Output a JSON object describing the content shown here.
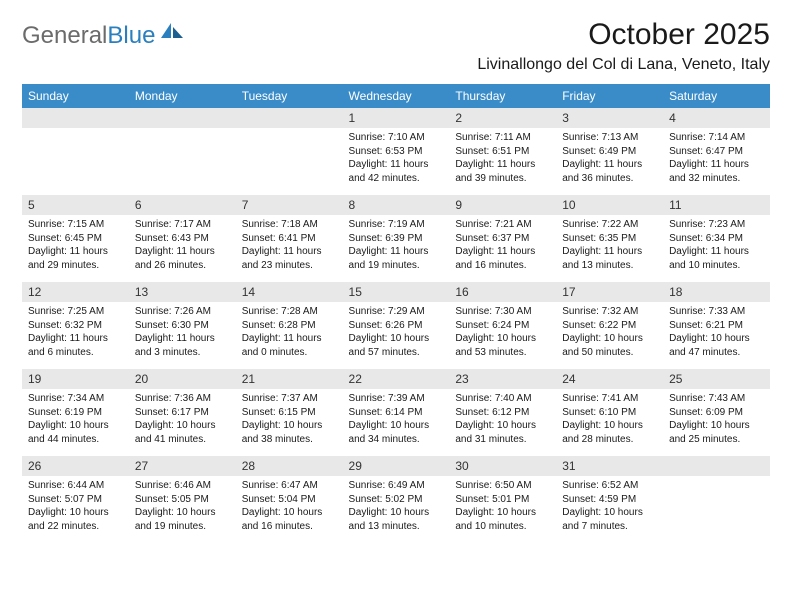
{
  "logo": {
    "text_gray": "General",
    "text_blue": "Blue"
  },
  "title": "October 2025",
  "location": "Livinallongo del Col di Lana, Veneto, Italy",
  "day_headers": [
    "Sunday",
    "Monday",
    "Tuesday",
    "Wednesday",
    "Thursday",
    "Friday",
    "Saturday"
  ],
  "colors": {
    "header_bg": "#3a8cc9",
    "header_fg": "#ffffff",
    "daynum_bg": "#e8e8e8",
    "page_bg": "#ffffff",
    "text": "#1a1a1a",
    "logo_gray": "#6b6b6b",
    "logo_blue": "#2a7fbf"
  },
  "typography": {
    "month_title_fontsize": 30,
    "location_fontsize": 16,
    "day_header_fontsize": 12,
    "daynum_fontsize": 12,
    "cell_body_fontsize": 10
  },
  "layout": {
    "columns": 7,
    "rows": 5,
    "cell_min_height": 62
  },
  "weeks": [
    [
      {
        "day": "",
        "sunrise": "",
        "sunset": "",
        "daylight": ""
      },
      {
        "day": "",
        "sunrise": "",
        "sunset": "",
        "daylight": ""
      },
      {
        "day": "",
        "sunrise": "",
        "sunset": "",
        "daylight": ""
      },
      {
        "day": "1",
        "sunrise": "Sunrise: 7:10 AM",
        "sunset": "Sunset: 6:53 PM",
        "daylight": "Daylight: 11 hours and 42 minutes."
      },
      {
        "day": "2",
        "sunrise": "Sunrise: 7:11 AM",
        "sunset": "Sunset: 6:51 PM",
        "daylight": "Daylight: 11 hours and 39 minutes."
      },
      {
        "day": "3",
        "sunrise": "Sunrise: 7:13 AM",
        "sunset": "Sunset: 6:49 PM",
        "daylight": "Daylight: 11 hours and 36 minutes."
      },
      {
        "day": "4",
        "sunrise": "Sunrise: 7:14 AM",
        "sunset": "Sunset: 6:47 PM",
        "daylight": "Daylight: 11 hours and 32 minutes."
      }
    ],
    [
      {
        "day": "5",
        "sunrise": "Sunrise: 7:15 AM",
        "sunset": "Sunset: 6:45 PM",
        "daylight": "Daylight: 11 hours and 29 minutes."
      },
      {
        "day": "6",
        "sunrise": "Sunrise: 7:17 AM",
        "sunset": "Sunset: 6:43 PM",
        "daylight": "Daylight: 11 hours and 26 minutes."
      },
      {
        "day": "7",
        "sunrise": "Sunrise: 7:18 AM",
        "sunset": "Sunset: 6:41 PM",
        "daylight": "Daylight: 11 hours and 23 minutes."
      },
      {
        "day": "8",
        "sunrise": "Sunrise: 7:19 AM",
        "sunset": "Sunset: 6:39 PM",
        "daylight": "Daylight: 11 hours and 19 minutes."
      },
      {
        "day": "9",
        "sunrise": "Sunrise: 7:21 AM",
        "sunset": "Sunset: 6:37 PM",
        "daylight": "Daylight: 11 hours and 16 minutes."
      },
      {
        "day": "10",
        "sunrise": "Sunrise: 7:22 AM",
        "sunset": "Sunset: 6:35 PM",
        "daylight": "Daylight: 11 hours and 13 minutes."
      },
      {
        "day": "11",
        "sunrise": "Sunrise: 7:23 AM",
        "sunset": "Sunset: 6:34 PM",
        "daylight": "Daylight: 11 hours and 10 minutes."
      }
    ],
    [
      {
        "day": "12",
        "sunrise": "Sunrise: 7:25 AM",
        "sunset": "Sunset: 6:32 PM",
        "daylight": "Daylight: 11 hours and 6 minutes."
      },
      {
        "day": "13",
        "sunrise": "Sunrise: 7:26 AM",
        "sunset": "Sunset: 6:30 PM",
        "daylight": "Daylight: 11 hours and 3 minutes."
      },
      {
        "day": "14",
        "sunrise": "Sunrise: 7:28 AM",
        "sunset": "Sunset: 6:28 PM",
        "daylight": "Daylight: 11 hours and 0 minutes."
      },
      {
        "day": "15",
        "sunrise": "Sunrise: 7:29 AM",
        "sunset": "Sunset: 6:26 PM",
        "daylight": "Daylight: 10 hours and 57 minutes."
      },
      {
        "day": "16",
        "sunrise": "Sunrise: 7:30 AM",
        "sunset": "Sunset: 6:24 PM",
        "daylight": "Daylight: 10 hours and 53 minutes."
      },
      {
        "day": "17",
        "sunrise": "Sunrise: 7:32 AM",
        "sunset": "Sunset: 6:22 PM",
        "daylight": "Daylight: 10 hours and 50 minutes."
      },
      {
        "day": "18",
        "sunrise": "Sunrise: 7:33 AM",
        "sunset": "Sunset: 6:21 PM",
        "daylight": "Daylight: 10 hours and 47 minutes."
      }
    ],
    [
      {
        "day": "19",
        "sunrise": "Sunrise: 7:34 AM",
        "sunset": "Sunset: 6:19 PM",
        "daylight": "Daylight: 10 hours and 44 minutes."
      },
      {
        "day": "20",
        "sunrise": "Sunrise: 7:36 AM",
        "sunset": "Sunset: 6:17 PM",
        "daylight": "Daylight: 10 hours and 41 minutes."
      },
      {
        "day": "21",
        "sunrise": "Sunrise: 7:37 AM",
        "sunset": "Sunset: 6:15 PM",
        "daylight": "Daylight: 10 hours and 38 minutes."
      },
      {
        "day": "22",
        "sunrise": "Sunrise: 7:39 AM",
        "sunset": "Sunset: 6:14 PM",
        "daylight": "Daylight: 10 hours and 34 minutes."
      },
      {
        "day": "23",
        "sunrise": "Sunrise: 7:40 AM",
        "sunset": "Sunset: 6:12 PM",
        "daylight": "Daylight: 10 hours and 31 minutes."
      },
      {
        "day": "24",
        "sunrise": "Sunrise: 7:41 AM",
        "sunset": "Sunset: 6:10 PM",
        "daylight": "Daylight: 10 hours and 28 minutes."
      },
      {
        "day": "25",
        "sunrise": "Sunrise: 7:43 AM",
        "sunset": "Sunset: 6:09 PM",
        "daylight": "Daylight: 10 hours and 25 minutes."
      }
    ],
    [
      {
        "day": "26",
        "sunrise": "Sunrise: 6:44 AM",
        "sunset": "Sunset: 5:07 PM",
        "daylight": "Daylight: 10 hours and 22 minutes."
      },
      {
        "day": "27",
        "sunrise": "Sunrise: 6:46 AM",
        "sunset": "Sunset: 5:05 PM",
        "daylight": "Daylight: 10 hours and 19 minutes."
      },
      {
        "day": "28",
        "sunrise": "Sunrise: 6:47 AM",
        "sunset": "Sunset: 5:04 PM",
        "daylight": "Daylight: 10 hours and 16 minutes."
      },
      {
        "day": "29",
        "sunrise": "Sunrise: 6:49 AM",
        "sunset": "Sunset: 5:02 PM",
        "daylight": "Daylight: 10 hours and 13 minutes."
      },
      {
        "day": "30",
        "sunrise": "Sunrise: 6:50 AM",
        "sunset": "Sunset: 5:01 PM",
        "daylight": "Daylight: 10 hours and 10 minutes."
      },
      {
        "day": "31",
        "sunrise": "Sunrise: 6:52 AM",
        "sunset": "Sunset: 4:59 PM",
        "daylight": "Daylight: 10 hours and 7 minutes."
      },
      {
        "day": "",
        "sunrise": "",
        "sunset": "",
        "daylight": ""
      }
    ]
  ]
}
